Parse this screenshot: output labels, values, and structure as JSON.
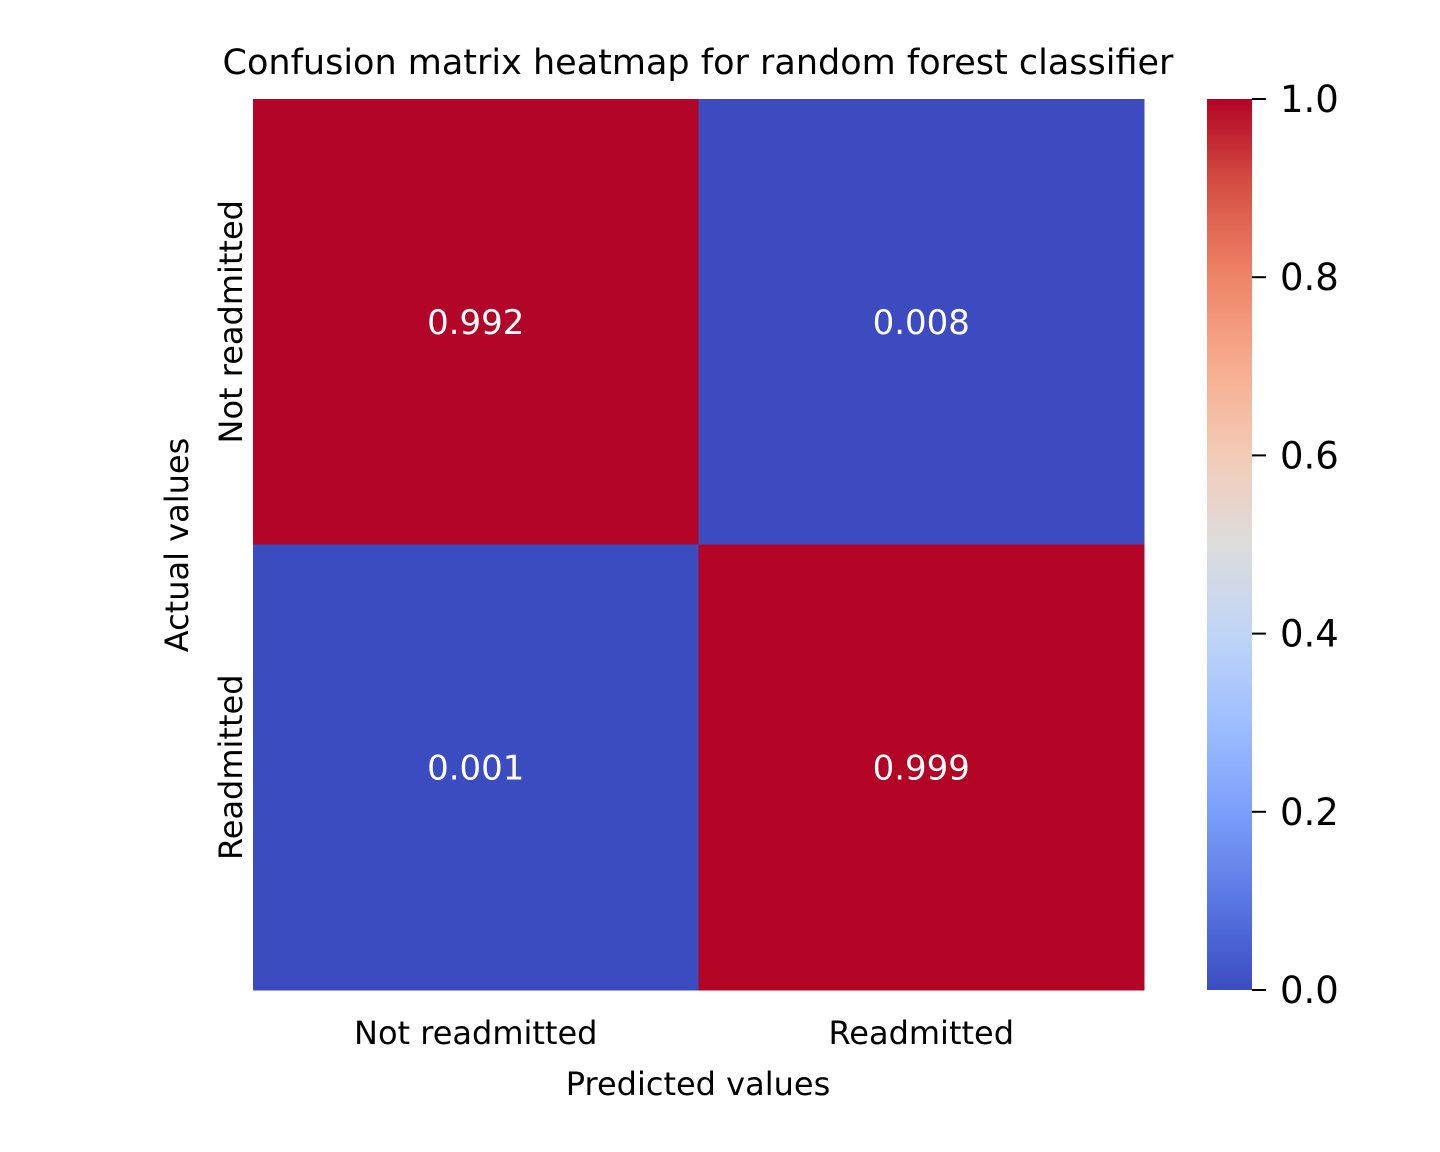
{
  "chart_data": {
    "type": "heatmap",
    "title": "Confusion matrix heatmap for random forest classifier",
    "xlabel": "Predicted values",
    "ylabel": "Actual values",
    "x_categories": [
      "Not readmitted",
      "Readmitted"
    ],
    "y_categories": [
      "Not readmitted",
      "Readmitted"
    ],
    "values": [
      [
        0.992,
        0.008
      ],
      [
        0.001,
        0.999
      ]
    ],
    "value_labels": [
      [
        "0.992",
        "0.008"
      ],
      [
        "0.001",
        "0.999"
      ]
    ],
    "colormap": "coolwarm",
    "colorbar": {
      "range": [
        0.0,
        1.0
      ],
      "ticks": [
        0.0,
        0.2,
        0.4,
        0.6,
        0.8,
        1.0
      ],
      "tick_labels": [
        "0.0",
        "0.2",
        "0.4",
        "0.6",
        "0.8",
        "1.0"
      ]
    },
    "colors": {
      "low": "#3b4cc0",
      "high": "#b40426",
      "annotation_text": "#ffffff"
    }
  }
}
